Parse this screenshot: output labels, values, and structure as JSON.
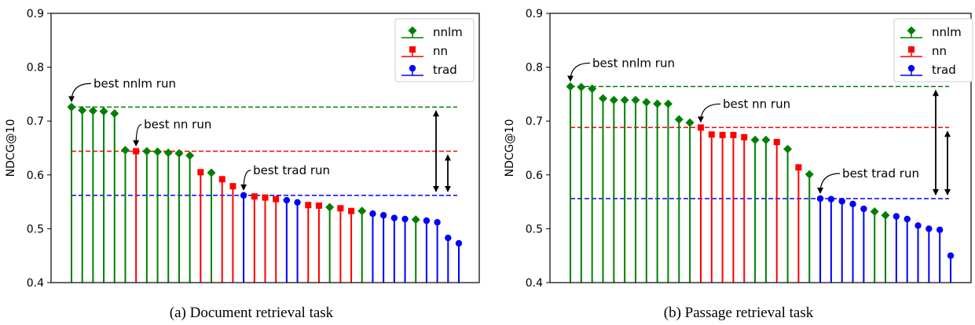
{
  "colors": {
    "nnlm": "#008000",
    "nn": "#ff0000",
    "trad": "#0000ff",
    "axis": "#000000"
  },
  "legend_entries": [
    {
      "key": "nnlm",
      "label": "nnlm",
      "marker": "diamond"
    },
    {
      "key": "nn",
      "label": "nn",
      "marker": "square"
    },
    {
      "key": "trad",
      "label": "trad",
      "marker": "circle"
    }
  ],
  "chart_data": [
    {
      "type": "stem",
      "caption": "(a) Document retrieval task",
      "ylabel": "NDCG@10",
      "ylim": [
        0.4,
        0.9
      ],
      "yticks": [
        "0.4",
        "0.5",
        "0.6",
        "0.7",
        "0.8",
        "0.9"
      ],
      "legend": "top-right",
      "runs": [
        {
          "g": "nnlm",
          "v": 0.726
        },
        {
          "g": "nnlm",
          "v": 0.72
        },
        {
          "g": "nnlm",
          "v": 0.719
        },
        {
          "g": "nnlm",
          "v": 0.718
        },
        {
          "g": "nnlm",
          "v": 0.714
        },
        {
          "g": "nnlm",
          "v": 0.646
        },
        {
          "g": "nn",
          "v": 0.644
        },
        {
          "g": "nnlm",
          "v": 0.644
        },
        {
          "g": "nnlm",
          "v": 0.643
        },
        {
          "g": "nnlm",
          "v": 0.641
        },
        {
          "g": "nnlm",
          "v": 0.64
        },
        {
          "g": "nnlm",
          "v": 0.636
        },
        {
          "g": "nn",
          "v": 0.605
        },
        {
          "g": "nnlm",
          "v": 0.604
        },
        {
          "g": "nn",
          "v": 0.592
        },
        {
          "g": "nn",
          "v": 0.579
        },
        {
          "g": "trad",
          "v": 0.562
        },
        {
          "g": "nn",
          "v": 0.56
        },
        {
          "g": "nn",
          "v": 0.558
        },
        {
          "g": "nn",
          "v": 0.555
        },
        {
          "g": "trad",
          "v": 0.553
        },
        {
          "g": "trad",
          "v": 0.549
        },
        {
          "g": "nn",
          "v": 0.544
        },
        {
          "g": "nn",
          "v": 0.543
        },
        {
          "g": "nnlm",
          "v": 0.54
        },
        {
          "g": "nn",
          "v": 0.538
        },
        {
          "g": "nn",
          "v": 0.533
        },
        {
          "g": "nnlm",
          "v": 0.533
        },
        {
          "g": "trad",
          "v": 0.528
        },
        {
          "g": "trad",
          "v": 0.525
        },
        {
          "g": "trad",
          "v": 0.52
        },
        {
          "g": "trad",
          "v": 0.518
        },
        {
          "g": "nnlm",
          "v": 0.517
        },
        {
          "g": "trad",
          "v": 0.515
        },
        {
          "g": "trad",
          "v": 0.512
        },
        {
          "g": "trad",
          "v": 0.483
        },
        {
          "g": "trad",
          "v": 0.473
        }
      ],
      "best_lines": [
        {
          "g": "nnlm",
          "v": 0.726
        },
        {
          "g": "nn",
          "v": 0.644
        },
        {
          "g": "trad",
          "v": 0.562
        }
      ],
      "annotations": [
        {
          "text": "best nnlm run",
          "run": 0
        },
        {
          "text": "best nn run",
          "run": 6
        },
        {
          "text": "best trad run",
          "run": 16
        }
      ]
    },
    {
      "type": "stem",
      "caption": "(b) Passage retrieval task",
      "ylabel": "NDCG@10",
      "ylim": [
        0.4,
        0.9
      ],
      "yticks": [
        "0.4",
        "0.5",
        "0.6",
        "0.7",
        "0.8",
        "0.9"
      ],
      "legend": "top-right",
      "runs": [
        {
          "g": "nnlm",
          "v": 0.764
        },
        {
          "g": "nnlm",
          "v": 0.763
        },
        {
          "g": "nnlm",
          "v": 0.76
        },
        {
          "g": "nnlm",
          "v": 0.742
        },
        {
          "g": "nnlm",
          "v": 0.739
        },
        {
          "g": "nnlm",
          "v": 0.739
        },
        {
          "g": "nnlm",
          "v": 0.739
        },
        {
          "g": "nnlm",
          "v": 0.735
        },
        {
          "g": "nnlm",
          "v": 0.732
        },
        {
          "g": "nnlm",
          "v": 0.732
        },
        {
          "g": "nnlm",
          "v": 0.703
        },
        {
          "g": "nnlm",
          "v": 0.697
        },
        {
          "g": "nn",
          "v": 0.688
        },
        {
          "g": "nn",
          "v": 0.675
        },
        {
          "g": "nn",
          "v": 0.674
        },
        {
          "g": "nn",
          "v": 0.674
        },
        {
          "g": "nn",
          "v": 0.67
        },
        {
          "g": "nnlm",
          "v": 0.665
        },
        {
          "g": "nnlm",
          "v": 0.665
        },
        {
          "g": "nn",
          "v": 0.661
        },
        {
          "g": "nnlm",
          "v": 0.648
        },
        {
          "g": "nn",
          "v": 0.614
        },
        {
          "g": "nnlm",
          "v": 0.601
        },
        {
          "g": "trad",
          "v": 0.556
        },
        {
          "g": "trad",
          "v": 0.555
        },
        {
          "g": "trad",
          "v": 0.551
        },
        {
          "g": "trad",
          "v": 0.546
        },
        {
          "g": "trad",
          "v": 0.537
        },
        {
          "g": "nnlm",
          "v": 0.532
        },
        {
          "g": "nnlm",
          "v": 0.525
        },
        {
          "g": "trad",
          "v": 0.523
        },
        {
          "g": "trad",
          "v": 0.518
        },
        {
          "g": "trad",
          "v": 0.506
        },
        {
          "g": "trad",
          "v": 0.5
        },
        {
          "g": "trad",
          "v": 0.498
        },
        {
          "g": "trad",
          "v": 0.45
        }
      ],
      "best_lines": [
        {
          "g": "nnlm",
          "v": 0.764
        },
        {
          "g": "nn",
          "v": 0.688
        },
        {
          "g": "trad",
          "v": 0.556
        }
      ],
      "annotations": [
        {
          "text": "best nnlm run",
          "run": 0
        },
        {
          "text": "best nn run",
          "run": 12
        },
        {
          "text": "best trad run",
          "run": 23
        }
      ]
    }
  ]
}
